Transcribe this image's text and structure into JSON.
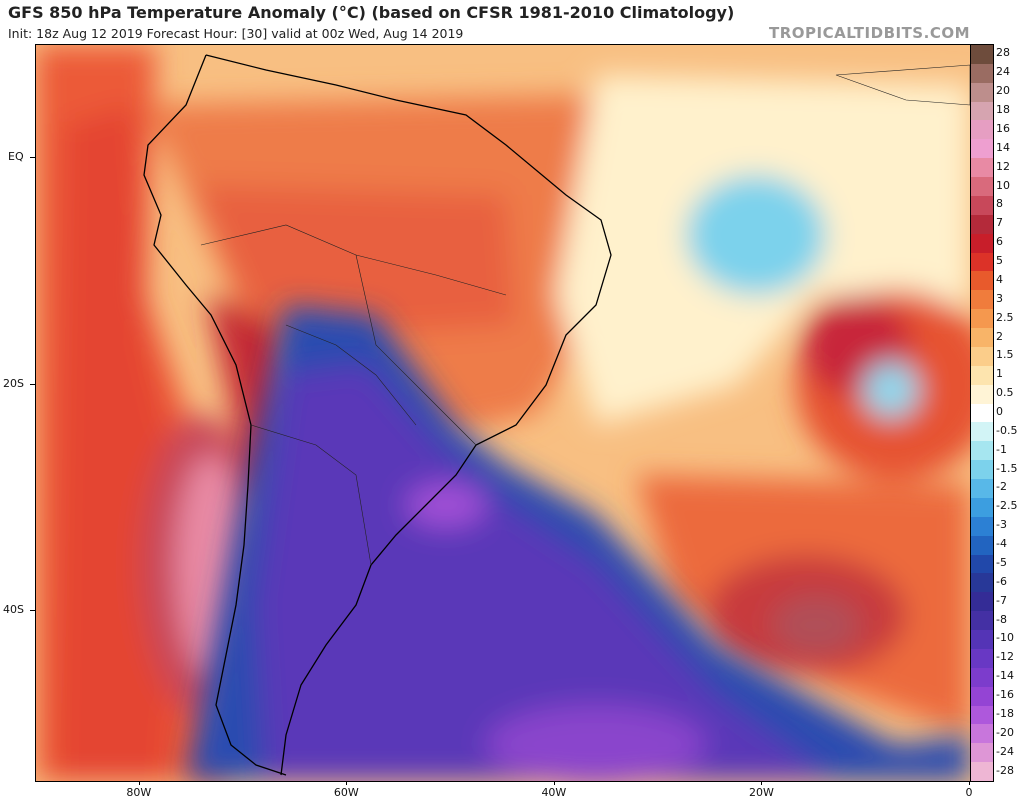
{
  "header": {
    "title": "GFS 850 hPa Temperature Anomaly (°C) (based on CFSR 1981-2010 Climatology)",
    "subtitle": "Init: 18z Aug 12 2019   Forecast Hour: [30]   valid at 00z Wed, Aug 14 2019",
    "credit": "TROPICALTIDBITS.COM"
  },
  "map": {
    "lat_labels": [
      {
        "text": "EQ",
        "lat": 0
      },
      {
        "text": "20S",
        "lat": -20
      },
      {
        "text": "40S",
        "lat": -40
      }
    ],
    "lon_labels": [
      {
        "text": "80W",
        "lon": -80
      },
      {
        "text": "60W",
        "lon": -60
      },
      {
        "text": "40W",
        "lon": -40
      },
      {
        "text": "20W",
        "lon": -20
      },
      {
        "text": "0",
        "lon": 0
      }
    ],
    "extent": {
      "lon_min": -90,
      "lon_max": 0,
      "lat_min": -55,
      "lat_max": 10
    }
  },
  "colorbar": {
    "labels": [
      "28",
      "24",
      "20",
      "18",
      "16",
      "14",
      "12",
      "10",
      "8",
      "7",
      "6",
      "5",
      "4",
      "3",
      "2.5",
      "2",
      "1.5",
      "1",
      "0.5",
      "0",
      "-0.5",
      "-1",
      "-1.5",
      "-2",
      "-2.5",
      "-3",
      "-4",
      "-5",
      "-6",
      "-7",
      "-8",
      "-10",
      "-12",
      "-14",
      "-16",
      "-18",
      "-20",
      "-24",
      "-28"
    ],
    "colors": [
      "#6e4c3c",
      "#9a6c62",
      "#bd8e8c",
      "#d6a4b0",
      "#e69ec2",
      "#ee9fd0",
      "#e88aa4",
      "#d96a7c",
      "#c8485a",
      "#b42a3a",
      "#c81e2a",
      "#dc3228",
      "#e85a2c",
      "#f07c3c",
      "#f5984e",
      "#f8b468",
      "#fbcd8a",
      "#fde4ae",
      "#fff4d6",
      "#ffffff",
      "#d2f4f6",
      "#a6e6f0",
      "#7cd2ec",
      "#58b8e8",
      "#3c9ee0",
      "#2c80d4",
      "#2264c0",
      "#2148aa",
      "#283898",
      "#342c96",
      "#4430a4",
      "#5434b6",
      "#6838c4",
      "#7c3ccc",
      "#9444d4",
      "#ae58dc",
      "#c876dc",
      "#de96d6",
      "#eeb6d4"
    ]
  }
}
